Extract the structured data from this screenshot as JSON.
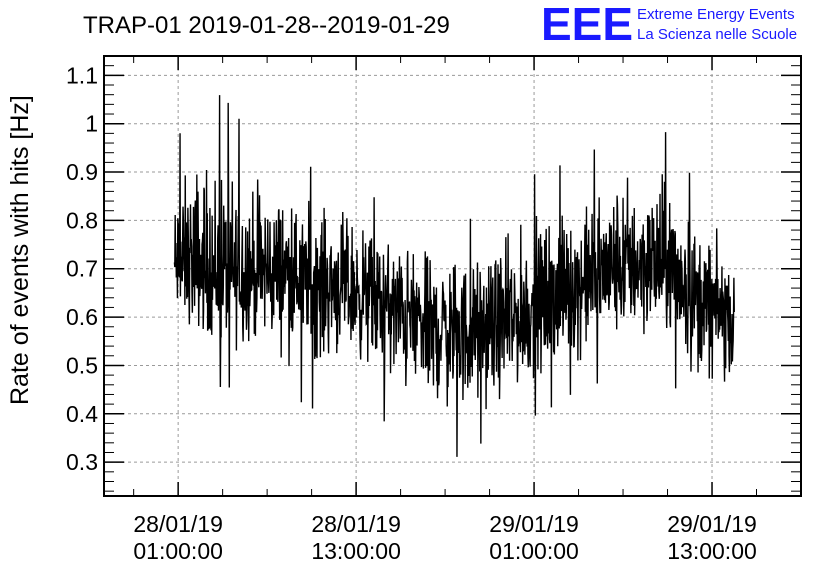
{
  "chart_data": {
    "type": "line",
    "title": "TRAP-01 2019-01-28--2019-01-29",
    "ylabel": "Rate of events with hits [Hz]",
    "xlabel": "",
    "ylim": [
      0.23,
      1.14
    ],
    "yticks": [
      0.3,
      0.4,
      0.5,
      0.6,
      0.7,
      0.8,
      0.9,
      1,
      1.1
    ],
    "ytick_labels": [
      "0.3",
      "0.4",
      "0.5",
      "0.6",
      "0.7",
      "0.8",
      "0.9",
      "1",
      "1.1"
    ],
    "xlim": [
      "2019-01-27 20:00",
      "2019-01-29 19:00"
    ],
    "xticks": [
      "2019-01-28 01:00",
      "2019-01-28 13:00",
      "2019-01-29 01:00",
      "2019-01-29 13:00"
    ],
    "xtick_labels": [
      [
        "28/01/19",
        "01:00:00"
      ],
      [
        "28/01/19",
        "13:00:00"
      ],
      [
        "29/01/19",
        "01:00:00"
      ],
      [
        "29/01/19",
        "13:00:00"
      ]
    ],
    "grid": true,
    "series": [
      {
        "color": "#000000",
        "x": [
          "2019-01-28 00:45",
          "2019-01-28 02:00",
          "2019-01-28 04:00",
          "2019-01-28 06:00",
          "2019-01-28 08:00",
          "2019-01-28 10:00",
          "2019-01-28 12:00",
          "2019-01-28 14:00",
          "2019-01-28 16:00",
          "2019-01-28 18:00",
          "2019-01-28 20:00",
          "2019-01-28 22:00",
          "2019-01-29 00:00",
          "2019-01-29 02:00",
          "2019-01-29 04:00",
          "2019-01-29 06:00",
          "2019-01-29 08:00",
          "2019-01-29 10:00",
          "2019-01-29 12:00",
          "2019-01-29 14:00",
          "2019-01-29 14:30"
        ],
        "y_mean": [
          0.7,
          0.69,
          0.68,
          0.69,
          0.7,
          0.68,
          0.66,
          0.64,
          0.61,
          0.58,
          0.57,
          0.57,
          0.59,
          0.63,
          0.66,
          0.69,
          0.7,
          0.7,
          0.64,
          0.6,
          0.57
        ],
        "y_min": [
          0.54,
          0.52,
          0.45,
          0.47,
          0.45,
          0.41,
          0.44,
          0.42,
          0.34,
          0.32,
          0.31,
          0.35,
          0.38,
          0.41,
          0.45,
          0.47,
          0.5,
          0.48,
          0.38,
          0.4,
          0.47
        ],
        "y_max": [
          0.95,
          1.05,
          1.06,
          0.97,
          0.94,
          0.91,
          0.9,
          0.85,
          0.83,
          0.8,
          0.8,
          0.81,
          0.88,
          0.91,
          0.92,
          0.97,
          1.02,
          0.98,
          0.87,
          0.81,
          0.74
        ]
      }
    ]
  },
  "logo": {
    "mark": "EEE",
    "line1": "Extreme Energy Events",
    "line2": "La Scienza nelle Scuole"
  }
}
